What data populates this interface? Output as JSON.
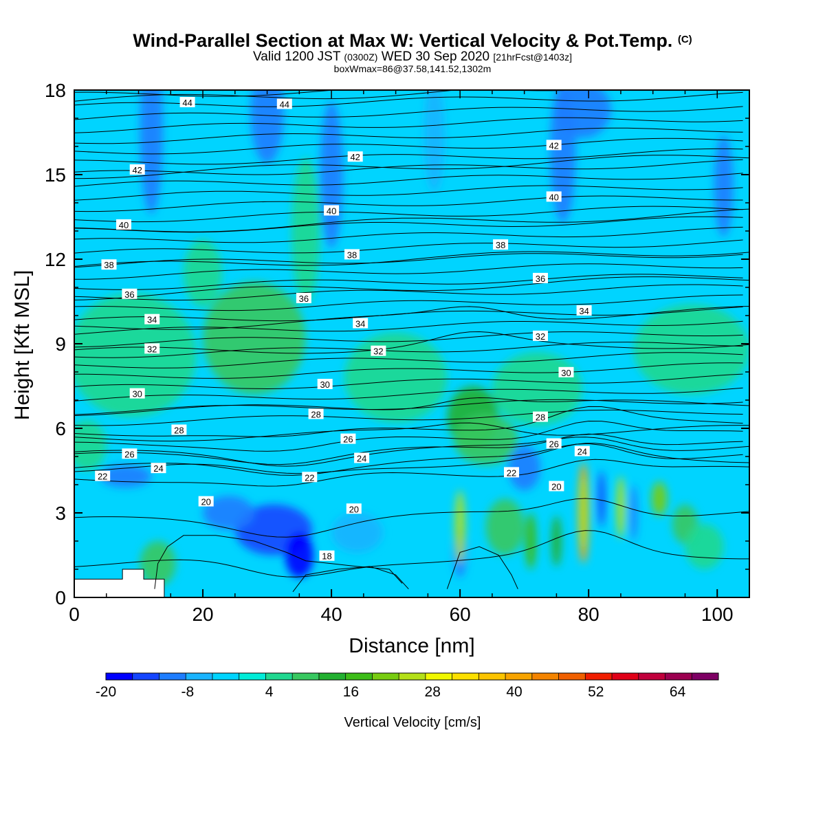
{
  "header": {
    "title": "Wind-Parallel Section at Max W: Vertical Velocity & Pot.Temp.",
    "copyright": "(C)",
    "valid_prefix": "Valid 1200 JST",
    "utc": "(0300Z)",
    "valid_date": "WED 30 Sep 2020",
    "forecast": "[21hrFcst@1403z]",
    "boxmax": "boxWmax=86@37.58,141.52,1302m"
  },
  "chart_data": {
    "type": "heatmap",
    "xlabel": "Distance [nm]",
    "ylabel": "Height [Kft MSL]",
    "xlim": [
      0,
      105
    ],
    "ylim": [
      0,
      18
    ],
    "xticks": [
      0,
      20,
      40,
      60,
      80,
      100
    ],
    "yticks": [
      0,
      3,
      6,
      9,
      12,
      15,
      18
    ],
    "colorbar": {
      "label": "Vertical Velocity [cm/s]",
      "tick_labels": [
        "-20",
        "-8",
        "4",
        "16",
        "28",
        "40",
        "52",
        "64"
      ],
      "tick_values": [
        -20,
        -8,
        4,
        16,
        28,
        40,
        52,
        64
      ],
      "range": [
        -20,
        70
      ],
      "step": 4,
      "colors": [
        "#0000ff",
        "#1445ff",
        "#1e7dff",
        "#1ab4ff",
        "#00d4ff",
        "#00ecd8",
        "#20d890",
        "#38c860",
        "#22b030",
        "#3cbc18",
        "#78cc10",
        "#b4e018",
        "#f0f800",
        "#fce000",
        "#fcc400",
        "#f8a400",
        "#f48400",
        "#f06000",
        "#f01e00",
        "#e00018",
        "#c0003c",
        "#9c0050",
        "#7e0064"
      ]
    },
    "theta_contours": {
      "units": "C",
      "levels": [
        18,
        20,
        22,
        24,
        26,
        28,
        30,
        32,
        34,
        36,
        38,
        40,
        42,
        44
      ],
      "labels": [
        {
          "text": "44",
          "x": 17.6,
          "y": 17.56
        },
        {
          "text": "44",
          "x": 32.7,
          "y": 17.5
        },
        {
          "text": "42",
          "x": 9.8,
          "y": 15.17
        },
        {
          "text": "42",
          "x": 43.7,
          "y": 15.63
        },
        {
          "text": "42",
          "x": 74.6,
          "y": 16.04
        },
        {
          "text": "40",
          "x": 7.7,
          "y": 13.22
        },
        {
          "text": "40",
          "x": 40.0,
          "y": 13.72
        },
        {
          "text": "40",
          "x": 74.6,
          "y": 14.21
        },
        {
          "text": "38",
          "x": 5.4,
          "y": 11.8
        },
        {
          "text": "38",
          "x": 43.2,
          "y": 12.16
        },
        {
          "text": "38",
          "x": 66.3,
          "y": 12.51
        },
        {
          "text": "36",
          "x": 8.6,
          "y": 10.76
        },
        {
          "text": "36",
          "x": 35.7,
          "y": 10.61
        },
        {
          "text": "36",
          "x": 72.5,
          "y": 11.32
        },
        {
          "text": "34",
          "x": 12.1,
          "y": 9.86
        },
        {
          "text": "34",
          "x": 44.5,
          "y": 9.72
        },
        {
          "text": "34",
          "x": 79.3,
          "y": 10.17
        },
        {
          "text": "32",
          "x": 12.1,
          "y": 8.82
        },
        {
          "text": "32",
          "x": 47.3,
          "y": 8.74
        },
        {
          "text": "32",
          "x": 72.5,
          "y": 9.27
        },
        {
          "text": "30",
          "x": 9.8,
          "y": 7.23
        },
        {
          "text": "30",
          "x": 39.0,
          "y": 7.56
        },
        {
          "text": "30",
          "x": 76.5,
          "y": 7.98
        },
        {
          "text": "28",
          "x": 16.3,
          "y": 5.94
        },
        {
          "text": "28",
          "x": 37.6,
          "y": 6.5
        },
        {
          "text": "28",
          "x": 72.5,
          "y": 6.4
        },
        {
          "text": "26",
          "x": 8.6,
          "y": 5.09
        },
        {
          "text": "26",
          "x": 42.6,
          "y": 5.62
        },
        {
          "text": "26",
          "x": 74.6,
          "y": 5.45
        },
        {
          "text": "24",
          "x": 13.1,
          "y": 4.58
        },
        {
          "text": "24",
          "x": 44.7,
          "y": 4.94
        },
        {
          "text": "24",
          "x": 79.0,
          "y": 5.18
        },
        {
          "text": "22",
          "x": 4.4,
          "y": 4.3
        },
        {
          "text": "22",
          "x": 36.6,
          "y": 4.26
        },
        {
          "text": "22",
          "x": 68.0,
          "y": 4.43
        },
        {
          "text": "20",
          "x": 20.5,
          "y": 3.4
        },
        {
          "text": "20",
          "x": 43.5,
          "y": 3.14
        },
        {
          "text": "20",
          "x": 75.0,
          "y": 3.94
        },
        {
          "text": "18",
          "x": 39.3,
          "y": 1.47
        }
      ]
    }
  }
}
